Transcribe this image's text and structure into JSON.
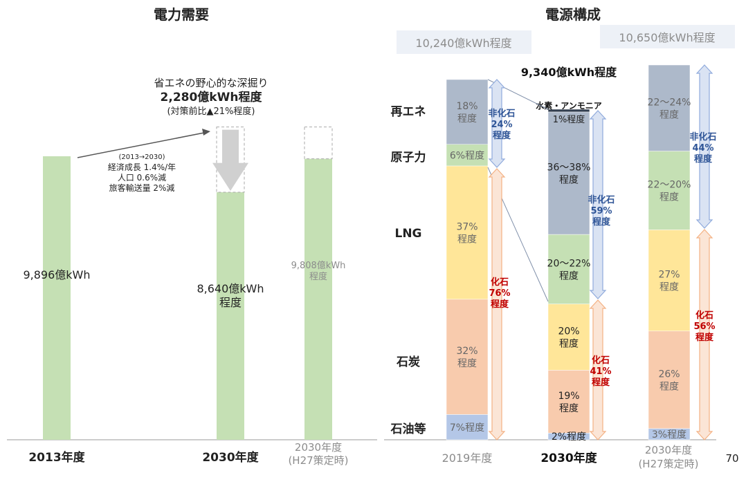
{
  "demand": {
    "title": "電力需要",
    "bars": [
      {
        "label": "2013年度",
        "value_label": "9,896億kWh",
        "value": 9896
      },
      {
        "label": "2030年度",
        "value_label_lines": [
          "8,640億kWh",
          "程度"
        ],
        "value": 8640,
        "reduction_top": 10920
      },
      {
        "label_lines": [
          "2030年度",
          "(H27策定時)"
        ],
        "value_label_lines": [
          "9,808億kWh",
          "程度"
        ],
        "value": 9808,
        "dashed_top": 10920
      }
    ],
    "savings_lines": [
      "省エネの野心的な深掘り",
      "2,280億kWh程度",
      "(対策前比▲21%程度)"
    ],
    "growth_lines": [
      "(2013→2030)",
      "経済成長 1.4%/年",
      "人口 0.6%減",
      "旅客輸送量 2%減"
    ]
  },
  "supply": {
    "title": "電源構成",
    "categories": [
      "再エネ",
      "原子力",
      "LNG",
      "石炭",
      "石油等"
    ],
    "page_number": "70",
    "columns": [
      {
        "label": "2019年度",
        "total": "10,240億kWh程度",
        "segments": [
          {
            "label": "18%\n程度",
            "value": 18
          },
          {
            "label": "6%程度",
            "value": 6
          },
          {
            "label": "37%\n程度",
            "value": 37
          },
          {
            "label": "32%\n程度",
            "value": 32
          },
          {
            "label": "7%程度",
            "value": 7
          }
        ],
        "nonfossil": "非化石\n24%\n程度",
        "fossil": "化石\n76%\n程度"
      },
      {
        "label": "2030年度",
        "total": "9,340億kWh程度",
        "segments": [
          {
            "label": "1%程度",
            "value": 1,
            "note": "水素・アンモニア"
          },
          {
            "label": "36～38%\n程度",
            "value": 37
          },
          {
            "label": "20～22%\n程度",
            "value": 21
          },
          {
            "label": "20%\n程度",
            "value": 20
          },
          {
            "label": "19%\n程度",
            "value": 19
          },
          {
            "label": "2%程度",
            "value": 2
          }
        ],
        "nonfossil": "非化石\n59%\n程度",
        "fossil": "化石\n41%\n程度"
      },
      {
        "label": "2030年度\n(H27策定時)",
        "total": "10,650億kWh程度",
        "segments": [
          {
            "label": "22～24%\n程度",
            "value": 23
          },
          {
            "label": "22～20%\n程度",
            "value": 21
          },
          {
            "label": "27%\n程度",
            "value": 27
          },
          {
            "label": "26%\n程度",
            "value": 26
          },
          {
            "label": "3%程度",
            "value": 3
          }
        ],
        "nonfossil": "非化石\n44%\n程度",
        "fossil": "化石\n56%\n程度"
      }
    ]
  },
  "colors": {
    "demand_bar": "#c5e0b4",
    "renewable": "#adb9ca",
    "nuclear": "#c5e0b4",
    "lng": "#ffe699",
    "coal": "#f8cbad",
    "oil": "#b4c7e7",
    "hydrogen": "#333f50",
    "arrow_nonfossil_fill": "#dae3f3",
    "arrow_nonfossil_stroke": "#8faadc",
    "arrow_fossil_fill": "#fbe5d6",
    "arrow_fossil_stroke": "#f4b183",
    "nonfossil_text": "#2f5597",
    "fossil_text": "#c00000",
    "total_box": "#edf1f7"
  }
}
